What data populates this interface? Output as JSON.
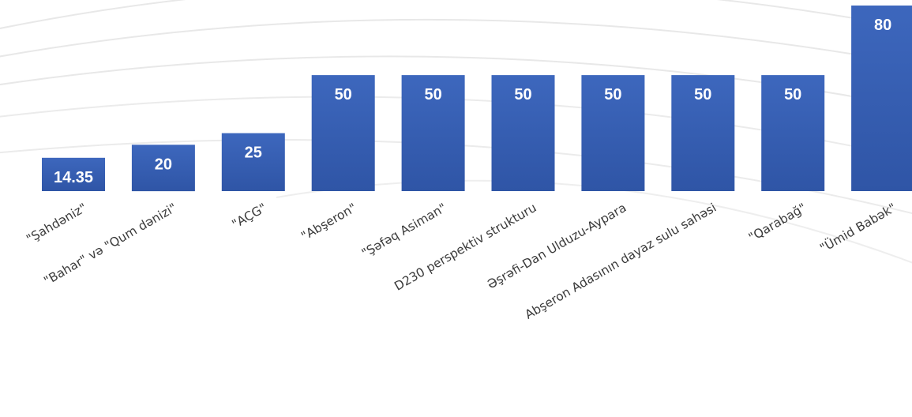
{
  "chart_data": {
    "type": "bar",
    "categories": [
      "\"Şahdəniz\"",
      "\"Bahar\" və \"Qum dənizi\"",
      "\"AÇG\"",
      "\"Abşeron\"",
      "\"Şəfəq Asiman\"",
      "D230 perspektiv strukturu",
      "Əşrəfi-Dan Ulduzu-Aypara",
      "Abşeron Adasının dayaz sulu sahəsi",
      "\"Qarabağ\"",
      "\"Ümid Babək\""
    ],
    "values": [
      14.35,
      20,
      25,
      50,
      50,
      50,
      50,
      50,
      50,
      80
    ],
    "data_labels": [
      "14.35",
      "20",
      "25",
      "50",
      "50",
      "50",
      "50",
      "50",
      "50",
      "80"
    ],
    "ylim": [
      0,
      80
    ],
    "grid": false,
    "legend": "none",
    "colors": {
      "bar": "#3a62b8",
      "bar_dark": "#2f55a6",
      "bar_label": "#ffffff",
      "tick_label": "#3a3a3a",
      "background_arcs": "#e6e6e6"
    }
  }
}
